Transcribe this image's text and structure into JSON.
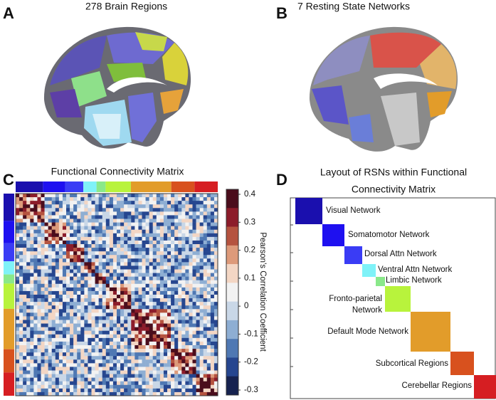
{
  "panels": {
    "A": {
      "letter": "A",
      "title": "278 Brain Regions"
    },
    "B": {
      "letter": "B",
      "title": "7 Resting State Networks"
    },
    "C": {
      "letter": "C",
      "title": "Functional Connectivity Matrix",
      "colorbar_label": "Pearson's Correlation Coefficient",
      "colorbar_ticks": [
        0.4,
        0.3,
        0.2,
        0.1,
        0,
        -0.1,
        -0.2,
        -0.3
      ],
      "colorbar_colors": [
        "#4a0d1c",
        "#8c1c2a",
        "#b5533f",
        "#dd9a7a",
        "#f3d6c4",
        "#f2f2f2",
        "#c9d7e7",
        "#8eaed3",
        "#4f78b3",
        "#26468f",
        "#16224f"
      ]
    },
    "D": {
      "letter": "D",
      "title_lines": [
        "Layout of RSNs within Functional",
        "Connectivity Matrix"
      ],
      "networks": [
        {
          "label": "Visual Network",
          "color": "#1a0fae"
        },
        {
          "label": "Somatomotor Network",
          "color": "#1e10f0"
        },
        {
          "label": "Dorsal Attn Network",
          "color": "#3a3cf5"
        },
        {
          "label": "Ventral Attn Network",
          "color": "#7ff2f8"
        },
        {
          "label": "Limbic Network",
          "color": "#8ae88a"
        },
        {
          "label": [
            "Fronto-parietal",
            "Network"
          ],
          "color": "#b8f33c"
        },
        {
          "label": "Default Mode Network",
          "color": "#e29c2a"
        },
        {
          "label": "Subcortical Regions",
          "color": "#d8511e"
        },
        {
          "label": "Cerebellar Regions",
          "color": "#d61e22"
        }
      ]
    }
  }
}
